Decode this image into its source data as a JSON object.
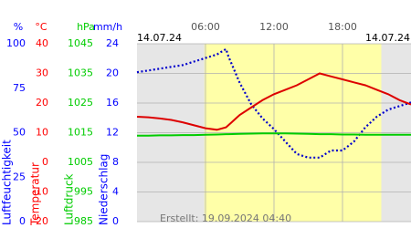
{
  "chart_data": {
    "type": "line",
    "dates": [
      "14.07.24",
      "14.07.24"
    ],
    "created": "Erstellt: 19.09.2024 04:40",
    "xlim": [
      0,
      24
    ],
    "xticks": [
      {
        "value": 6,
        "label": "06:00"
      },
      {
        "value": 12,
        "label": "12:00"
      },
      {
        "value": 18,
        "label": "18:00"
      }
    ],
    "daylight": [
      5.9,
      21.4
    ],
    "grid": true,
    "axes": [
      {
        "unit": "%",
        "title": "Luftfeuchtigkeit",
        "color": "#0000ff",
        "ylim": [
          0,
          100
        ],
        "yticks": [
          0,
          25,
          50,
          75,
          100
        ]
      },
      {
        "unit": "°C",
        "title": "Temperatur",
        "color": "#ff0000",
        "ylim": [
          -20,
          40
        ],
        "yticks": [
          -20,
          -10,
          0,
          10,
          20,
          30,
          40
        ]
      },
      {
        "unit": "hPa",
        "title": "Luftdruck",
        "color": "#00cc00",
        "ylim": [
          985,
          1045
        ],
        "yticks": [
          985,
          995,
          1005,
          1015,
          1025,
          1035,
          1045
        ]
      },
      {
        "unit": "mm/h",
        "title": "Niederschlag",
        "color": "#0000ff",
        "ylim": [
          0,
          24
        ],
        "yticks": [
          0,
          4,
          8,
          12,
          16,
          20,
          24
        ]
      }
    ],
    "x": [
      0,
      1,
      2,
      3,
      4,
      5,
      6,
      7,
      7.8,
      8,
      9,
      10,
      11,
      12,
      13,
      14,
      15,
      16,
      17,
      18,
      19,
      20,
      21,
      22,
      23,
      24
    ],
    "series": [
      {
        "axis": 0,
        "color": "#0000cc",
        "style": "dots",
        "values": [
          84,
          85,
          86,
          87,
          88,
          90,
          92,
          94,
          97,
          93,
          78,
          66,
          58,
          52,
          45,
          38,
          36,
          36,
          40,
          40,
          45,
          53,
          59,
          63,
          65,
          67
        ]
      },
      {
        "axis": 1,
        "color": "#dd0000",
        "style": "line",
        "values": [
          15.4,
          15.2,
          14.8,
          14.3,
          13.5,
          12.5,
          11.5,
          11.0,
          11.8,
          12.5,
          16,
          18.5,
          21,
          23,
          24.5,
          26,
          28,
          30,
          29,
          28,
          27,
          26,
          24.5,
          23,
          21,
          19.5
        ]
      },
      {
        "axis": 2,
        "color": "#00cc00",
        "style": "line",
        "values": [
          1014.0,
          1014.0,
          1014.1,
          1014.1,
          1014.2,
          1014.2,
          1014.3,
          1014.4,
          1014.5,
          1014.5,
          1014.6,
          1014.7,
          1014.8,
          1014.8,
          1014.8,
          1014.7,
          1014.6,
          1014.5,
          1014.5,
          1014.4,
          1014.4,
          1014.3,
          1014.3,
          1014.3,
          1014.3,
          1014.3
        ]
      }
    ]
  }
}
